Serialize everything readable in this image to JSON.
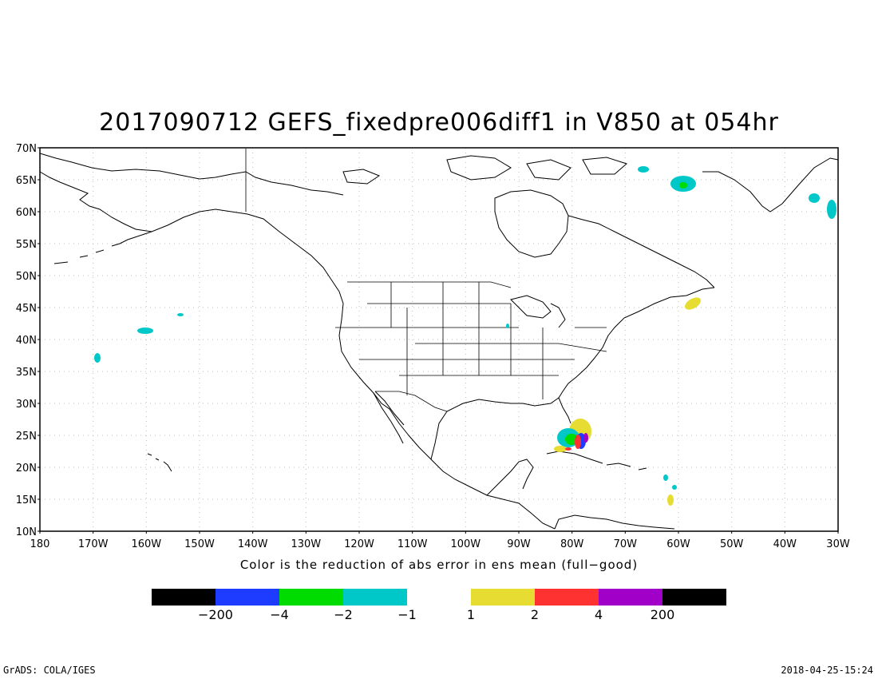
{
  "title": "2017090712 GEFS_fixedpre006diff1 in V850 at 054hr",
  "caption": "Color is the reduction of abs error in ens mean (full−good)",
  "lat_labels": [
    "70N",
    "65N",
    "60N",
    "55N",
    "50N",
    "45N",
    "40N",
    "35N",
    "30N",
    "25N",
    "20N",
    "15N",
    "10N"
  ],
  "lon_labels": [
    "180",
    "170W",
    "160W",
    "150W",
    "140W",
    "130W",
    "120W",
    "110W",
    "100W",
    "90W",
    "80W",
    "70W",
    "60W",
    "50W",
    "40W",
    "30W"
  ],
  "colorbar": {
    "segments": [
      {
        "color": "#000000"
      },
      {
        "color": "#1e3cff"
      },
      {
        "color": "#00dc00"
      },
      {
        "color": "#00c8c8"
      },
      {
        "color": "#ffffff"
      },
      {
        "color": "#e6dc32"
      },
      {
        "color": "#ff3232"
      },
      {
        "color": "#a000c8"
      },
      {
        "color": "#000000"
      }
    ],
    "labels": [
      "−200",
      "−4",
      "−2",
      "−1",
      "1",
      "2",
      "4",
      "200"
    ]
  },
  "footer_left": "GrADS: COLA/IGES",
  "footer_right": "2018-04-25-15:24",
  "colors": {
    "cyan": "#00c8c8",
    "green": "#00dc00",
    "yellow": "#e6dc32",
    "red": "#ff3232",
    "blue": "#1e3cff",
    "purple": "#a000c8"
  }
}
